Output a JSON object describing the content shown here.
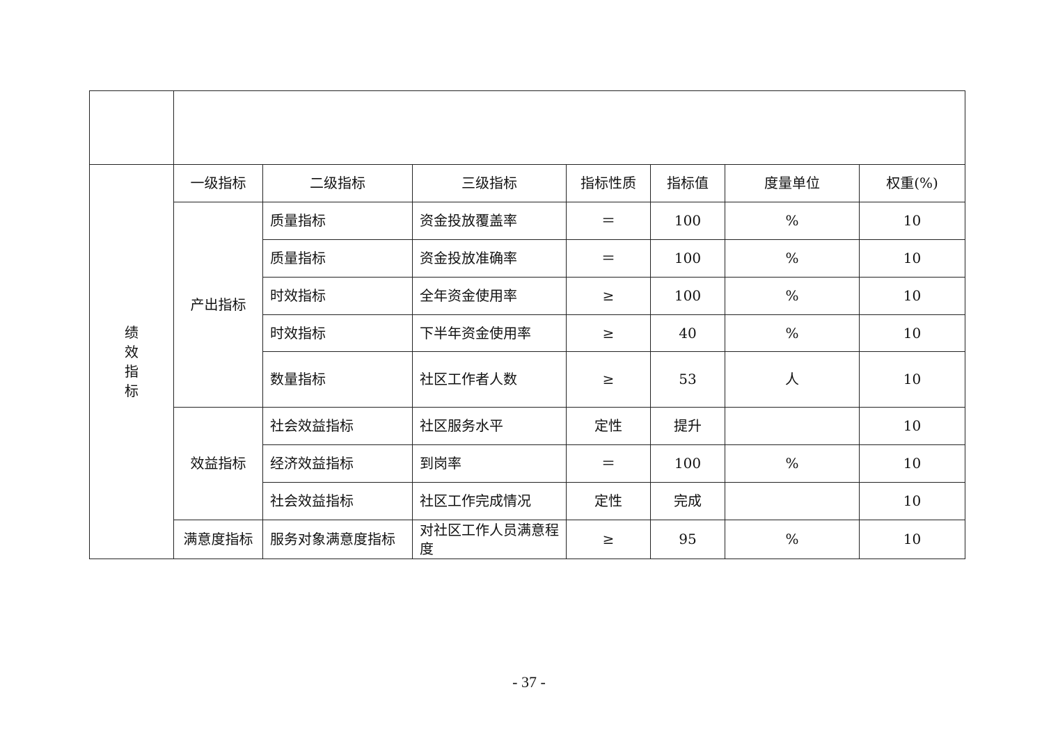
{
  "table": {
    "section_label": "绩效指标",
    "headers": [
      "一级指标",
      "二级指标",
      "三级指标",
      "指标性质",
      "指标值",
      "度量单位",
      "权重(%)"
    ],
    "groups": [
      {
        "level1": "产出指标",
        "rows": [
          [
            "质量指标",
            "资金投放覆盖率",
            "＝",
            "100",
            "%",
            "10"
          ],
          [
            "质量指标",
            "资金投放准确率",
            "＝",
            "100",
            "%",
            "10"
          ],
          [
            "时效指标",
            "全年资金使用率",
            "≥",
            "100",
            "%",
            "10"
          ],
          [
            "时效指标",
            "下半年资金使用率",
            "≥",
            "40",
            "%",
            "10"
          ],
          [
            "数量指标",
            "社区工作者人数",
            "≥",
            "53",
            "人",
            "10"
          ]
        ]
      },
      {
        "level1": "效益指标",
        "rows": [
          [
            "社会效益指标",
            "社区服务水平",
            "定性",
            "提升",
            "",
            "10"
          ],
          [
            "经济效益指标",
            "到岗率",
            "＝",
            "100",
            "%",
            "10"
          ],
          [
            "社会效益指标",
            "社区工作完成情况",
            "定性",
            "完成",
            "",
            "10"
          ]
        ]
      },
      {
        "level1": "满意度指标",
        "rows": [
          [
            "服务对象满意度指标",
            "对社区工作人员满意程度",
            "≥",
            "95",
            "%",
            "10"
          ]
        ]
      }
    ]
  },
  "page_number": "- 37 -"
}
